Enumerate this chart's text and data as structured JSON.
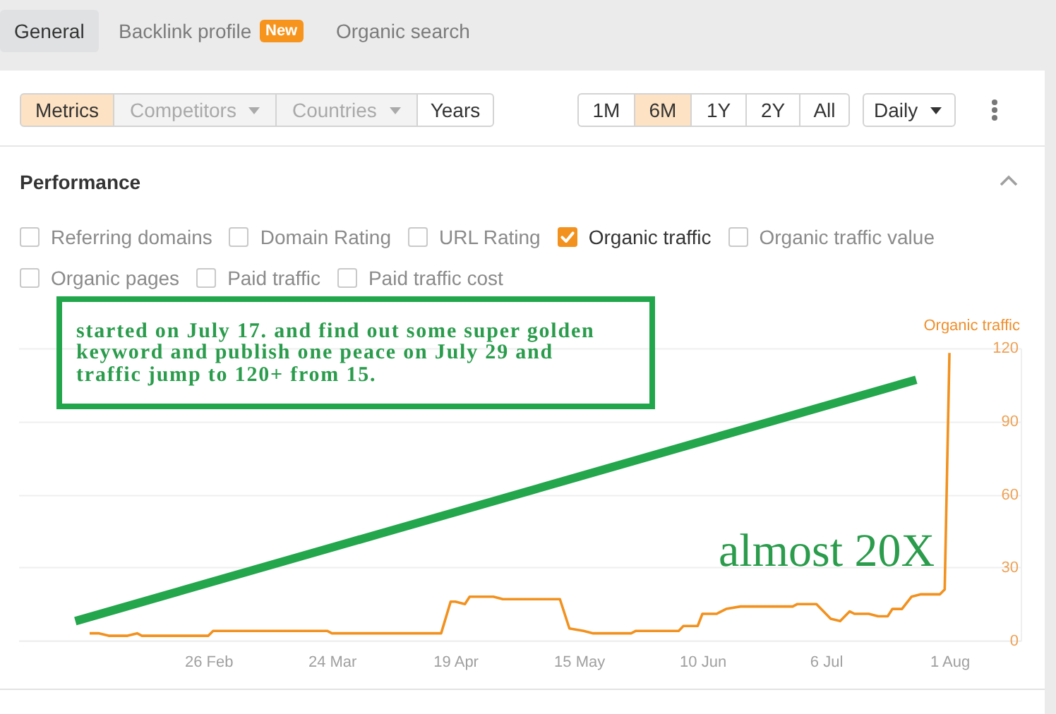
{
  "chart_data": [
    {
      "type": "other",
      "annotations": [
        "General",
        "Backlink profile",
        "New",
        "Organic search",
        "Metrics",
        "Competitors",
        "Countries",
        "Years",
        "1M",
        "6M",
        "1Y",
        "2Y",
        "All",
        "Daily"
      ]
    },
    {
      "type": "line",
      "title": "Performance",
      "ylabel": "Organic traffic",
      "legend": "top",
      "grid": "y",
      "annotations": [
        "Referring domains",
        "Domain Rating",
        "URL Rating",
        "Organic traffic value",
        "Organic pages",
        "Paid traffic",
        "Paid traffic cost",
        "started on July 17. and find out some super golden keyword and publish one peace on July 29 and traffic jump to 120+ from 15.",
        "almost 20X"
      ],
      "xlim": [
        "--01-17",
        "--08-16"
      ],
      "xticks": [
        {
          "value": "--02-26",
          "label": "26 Feb"
        },
        {
          "value": "--03-24",
          "label": "24 Mar"
        },
        {
          "value": "--04-19",
          "label": "19 Apr"
        },
        {
          "value": "--05-15",
          "label": "15 May"
        },
        {
          "value": "--06-10",
          "label": "10 Jun"
        },
        {
          "value": "--07-06",
          "label": "6 Jul"
        },
        {
          "value": "--08-01",
          "label": "1 Aug"
        }
      ],
      "ylim": [
        0,
        120
      ],
      "yticks": [
        0,
        30,
        60,
        90,
        120
      ],
      "series": [
        {
          "name": "Organic traffic",
          "color": "#f2911e",
          "x": [
            "--02-01",
            "--02-03",
            "--02-05",
            "--02-09",
            "--02-11",
            "--02-12",
            "--02-26",
            "--02-27",
            "--03-23",
            "--03-24",
            "--04-16",
            "--04-18",
            "--04-19",
            "--04-21",
            "--04-22",
            "--04-27",
            "--04-29",
            "--05-11",
            "--05-13",
            "--05-16",
            "--05-18",
            "--05-26",
            "--05-27",
            "--06-05",
            "--06-06",
            "--06-09",
            "--06-10",
            "--06-13",
            "--06-15",
            "--06-18",
            "--06-29",
            "--06-30",
            "--07-04",
            "--07-07",
            "--07-09",
            "--07-11",
            "--07-12",
            "--07-15",
            "--07-17",
            "--07-19",
            "--07-20",
            "--07-22",
            "--07-24",
            "--07-26",
            "--07-30",
            "--07-31",
            "--08-01"
          ],
          "values": [
            3,
            3,
            2,
            2,
            3,
            2,
            2,
            4,
            4,
            3,
            3,
            16,
            16,
            15,
            18,
            18,
            17,
            17,
            5,
            4,
            3,
            3,
            4,
            4,
            6,
            6,
            11,
            11,
            13,
            14,
            14,
            15,
            15,
            9,
            8,
            12,
            11,
            11,
            10,
            10,
            13,
            13,
            18,
            19,
            19,
            21,
            118
          ]
        },
        {
          "color": "#23a64c",
          "x": [
            "--01-29",
            "--07-25"
          ],
          "values": [
            8,
            107
          ]
        }
      ]
    }
  ]
}
